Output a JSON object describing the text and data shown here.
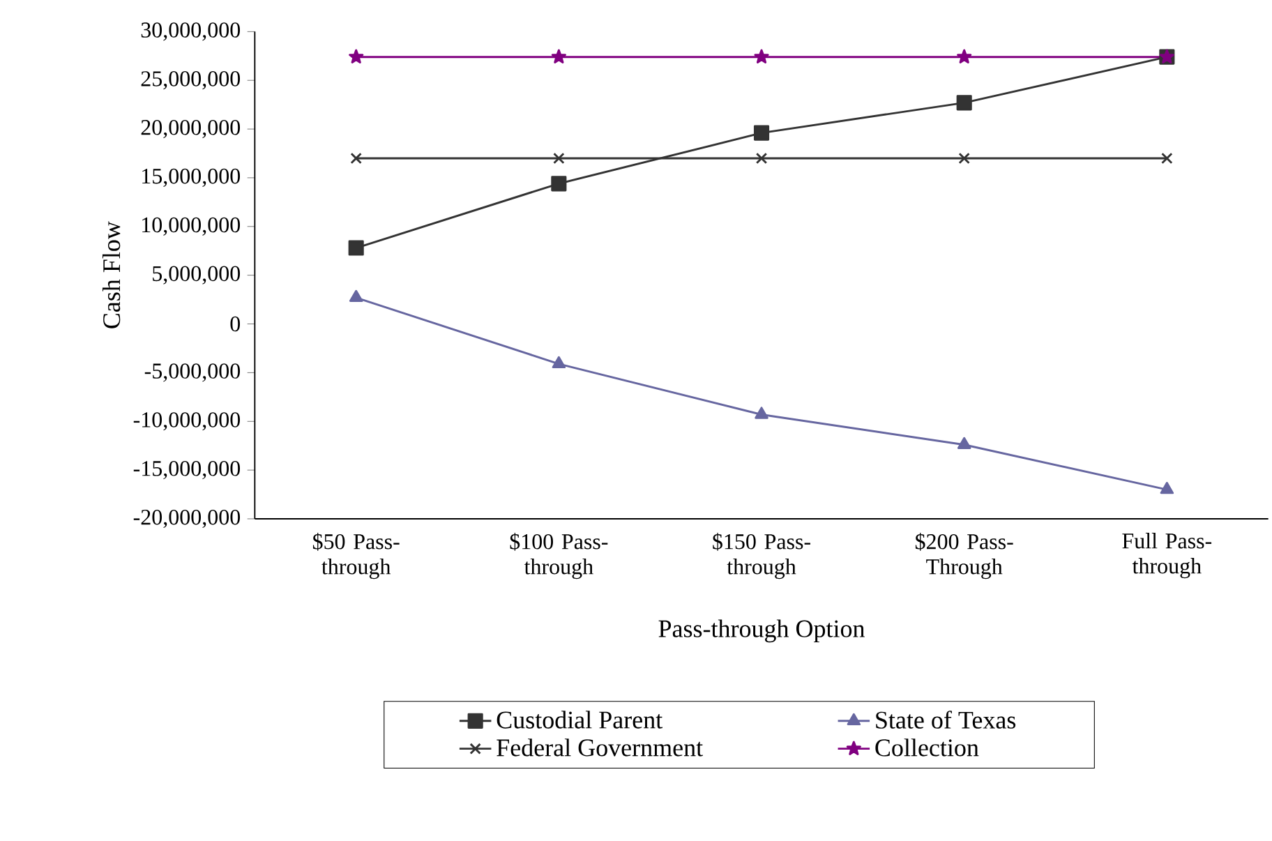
{
  "chart_data": {
    "type": "line",
    "categories": [
      "$50 Pass-through",
      "$100 Pass-through",
      "$150 Pass-through",
      "$200 Pass-Through",
      "Full Pass-through"
    ],
    "series": [
      {
        "name": "Custodial Parent",
        "color": "#333333",
        "marker": "square",
        "values": [
          7800000,
          14400000,
          19600000,
          22700000,
          27400000
        ]
      },
      {
        "name": "State of Texas",
        "color": "#6666a0",
        "marker": "triangle",
        "values": [
          2700000,
          -4100000,
          -9300000,
          -12400000,
          -17000000
        ]
      },
      {
        "name": "Federal Government",
        "color": "#333333",
        "marker": "cross",
        "values": [
          17000000,
          17000000,
          17000000,
          17000000,
          17000000
        ]
      },
      {
        "name": "Collection",
        "color": "#800080",
        "marker": "star",
        "values": [
          27400000,
          27400000,
          27400000,
          27400000,
          27400000
        ]
      }
    ],
    "xlabel": "Pass-through Option",
    "ylabel": "Cash Flow",
    "ylim": [
      -20000000,
      30000000
    ],
    "yticks": [
      {
        "value": -20000000,
        "label": "-20,000,000"
      },
      {
        "value": -15000000,
        "label": "-15,000,000"
      },
      {
        "value": -10000000,
        "label": "-10,000,000"
      },
      {
        "value": -5000000,
        "label": "-5,000,000"
      },
      0,
      {
        "value": 5000000,
        "label": "5,000,000"
      },
      {
        "value": 10000000,
        "label": "10,000,000"
      },
      {
        "value": 15000000,
        "label": "15,000,000"
      },
      {
        "value": 20000000,
        "label": "20,000,000"
      },
      {
        "value": 25000000,
        "label": "25,000,000"
      },
      {
        "value": 30000000,
        "label": "30,000,000"
      }
    ],
    "legend": "bottom",
    "grid": false,
    "line_style": "solid"
  }
}
